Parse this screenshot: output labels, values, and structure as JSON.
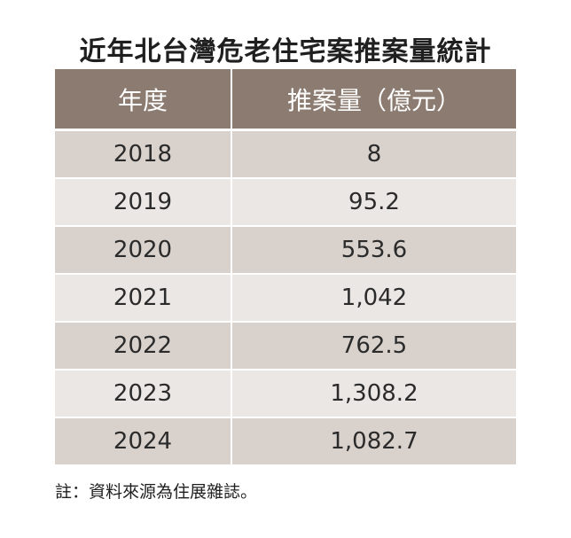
{
  "title": "近年北台灣危老住宅案推案量統計",
  "note": "註：資料來源為住展雜誌。",
  "chart_data": {
    "type": "table",
    "title": "近年北台灣危老住宅案推案量統計",
    "columns": [
      "年度",
      "推案量（億元）"
    ],
    "rows": [
      {
        "year": "2018",
        "value": "8"
      },
      {
        "year": "2019",
        "value": "95.2"
      },
      {
        "year": "2020",
        "value": "553.6"
      },
      {
        "year": "2021",
        "value": "1,042"
      },
      {
        "year": "2022",
        "value": "762.5"
      },
      {
        "year": "2023",
        "value": "1,308.2"
      },
      {
        "year": "2024",
        "value": "1,082.7"
      }
    ]
  },
  "colors": {
    "header_bg": "#8c7b70",
    "row_dark": "#d8d1cc",
    "row_light": "#ebe7e4"
  }
}
